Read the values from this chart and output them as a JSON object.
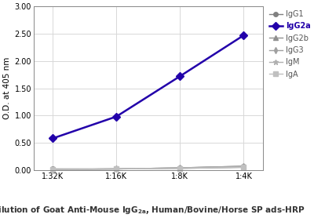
{
  "x_labels": [
    "1:32K",
    "1:16K",
    "1:8K",
    "1:4K"
  ],
  "x_values": [
    0,
    1,
    2,
    3
  ],
  "series": {
    "IgG1": {
      "values": [
        0.02,
        0.02,
        0.04,
        0.07
      ],
      "color": "#808080",
      "marker": "o",
      "linewidth": 1.0,
      "markersize": 4,
      "linestyle": "-"
    },
    "IgG2a": {
      "values": [
        0.58,
        0.98,
        1.72,
        2.47
      ],
      "color": "#2200aa",
      "marker": "D",
      "linewidth": 1.8,
      "markersize": 5,
      "linestyle": "-"
    },
    "IgG2b": {
      "values": [
        0.01,
        0.02,
        0.03,
        0.05
      ],
      "color": "#909090",
      "marker": "^",
      "linewidth": 1.0,
      "markersize": 4,
      "linestyle": "-"
    },
    "IgG3": {
      "values": [
        0.01,
        0.02,
        0.04,
        0.07
      ],
      "color": "#a0a0a0",
      "marker": "d",
      "linewidth": 1.0,
      "markersize": 4,
      "linestyle": "-"
    },
    "IgM": {
      "values": [
        0.01,
        0.02,
        0.04,
        0.06
      ],
      "color": "#b0b0b0",
      "marker": "*",
      "linewidth": 1.0,
      "markersize": 5,
      "linestyle": "-"
    },
    "IgA": {
      "values": [
        0.01,
        0.02,
        0.03,
        0.05
      ],
      "color": "#c0c0c0",
      "marker": "s",
      "linewidth": 1.0,
      "markersize": 4,
      "linestyle": "-"
    }
  },
  "ylabel": "O.D. at 405 nm",
  "ylim": [
    0.0,
    3.0
  ],
  "yticks": [
    0.0,
    0.5,
    1.0,
    1.5,
    2.0,
    2.5,
    3.0
  ],
  "legend_order": [
    "IgG1",
    "IgG2a",
    "IgG2b",
    "IgG3",
    "IgM",
    "IgA"
  ],
  "grid_color": "#d8d8d8",
  "xlabel_normal": "Dilution of Goat Anti-Mouse IgG",
  "xlabel_sub": "2a",
  "xlabel_end": ", Human/Bovine/Horse SP ads-HRP"
}
